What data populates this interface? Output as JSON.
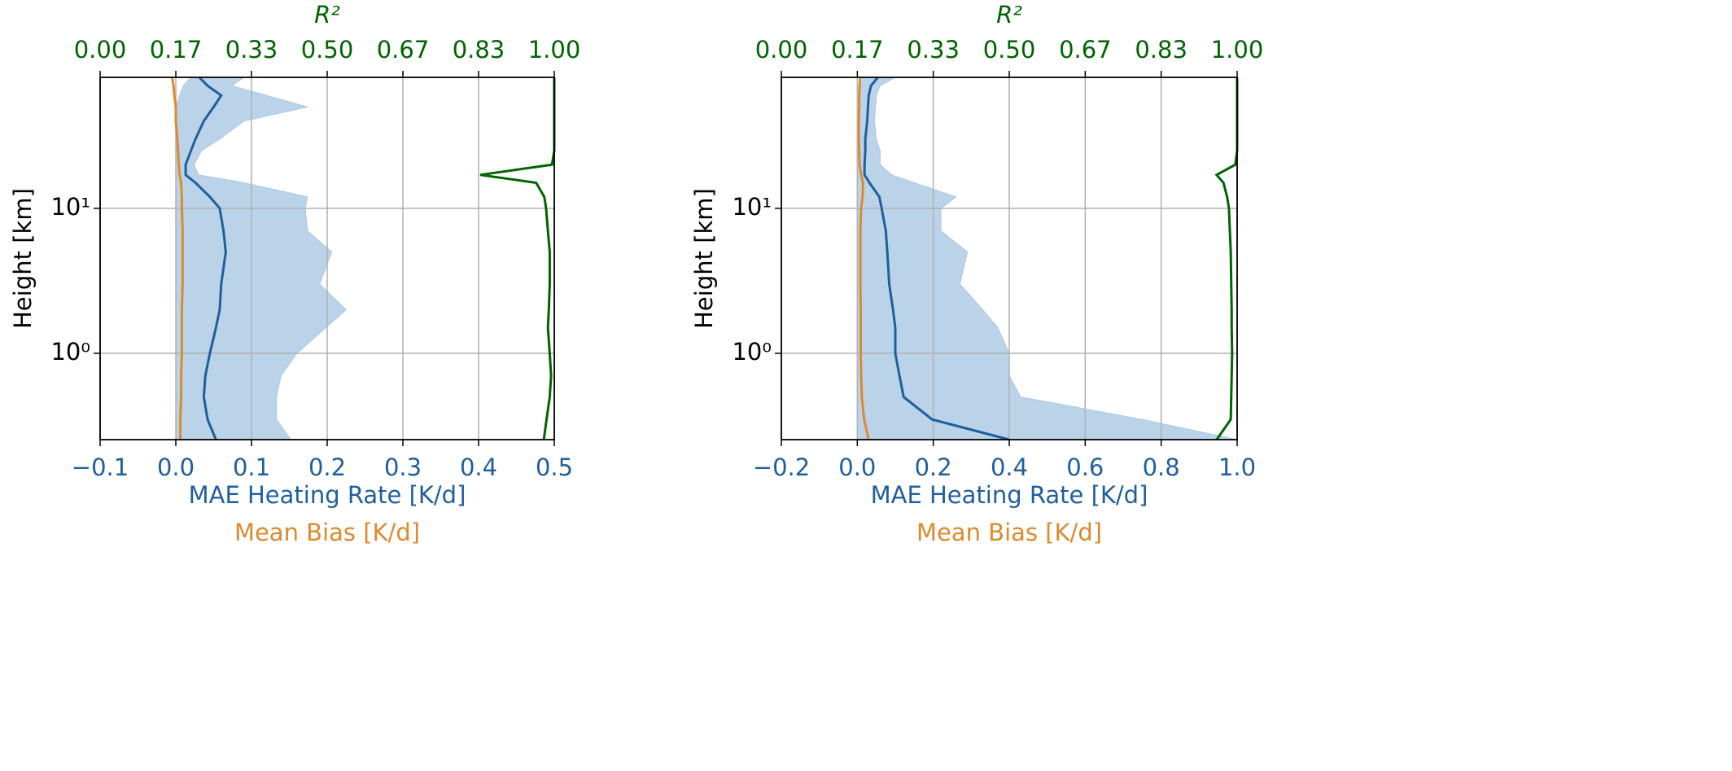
{
  "chart_data": [
    {
      "type": "line",
      "yscale": "log",
      "grid": true,
      "ylabel": "Height [km]",
      "xlabel": "MAE Heating Rate [K/d]",
      "bias_label": "Mean Bias [K/d]",
      "x2label": "R²",
      "y": [
        0.254,
        0.35,
        0.5,
        0.7,
        1,
        1.5,
        2,
        3,
        5,
        7,
        10,
        12,
        15,
        17,
        20,
        25,
        30,
        40,
        50,
        60,
        70,
        80
      ],
      "ylim": [
        0.254,
        80
      ],
      "yticks": [
        {
          "value": 1,
          "label": "10⁰"
        },
        {
          "value": 10,
          "label": "10¹"
        }
      ],
      "xlim": [
        -0.1,
        0.5
      ],
      "xticks": [
        {
          "value": -0.1,
          "label": "−0.1"
        },
        {
          "value": 0,
          "label": "0.0"
        },
        0.1,
        0.2,
        0.3,
        0.4,
        0.5
      ],
      "x2lim": [
        0,
        1
      ],
      "x2ticks": [
        {
          "value": 0,
          "label": "0.00"
        },
        {
          "value": 0.1667,
          "label": "0.17"
        },
        {
          "value": 0.3333,
          "label": "0.33"
        },
        {
          "value": 0.5,
          "label": "0.50"
        },
        {
          "value": 0.6667,
          "label": "0.67"
        },
        {
          "value": 0.8333,
          "label": "0.83"
        },
        {
          "value": 1,
          "label": "1.00"
        }
      ],
      "band": {
        "color": "#a9c8e4",
        "lower": [
          0,
          0,
          0,
          0,
          0,
          0,
          0,
          0,
          0,
          0,
          0,
          0,
          0,
          0,
          0,
          0,
          0,
          0,
          0,
          0.005,
          0.01,
          0.02
        ],
        "upper": [
          0.152,
          0.133,
          0.133,
          0.139,
          0.16,
          0.198,
          0.225,
          0.19,
          0.206,
          0.174,
          0.171,
          0.174,
          0.09,
          0.03,
          0.024,
          0.034,
          0.058,
          0.09,
          0.174,
          0.12,
          0.074,
          0.09
        ]
      },
      "series": [
        {
          "color": "#1f5f9c",
          "values": [
            0.053,
            0.042,
            0.037,
            0.039,
            0.045,
            0.053,
            0.058,
            0.06,
            0.066,
            0.063,
            0.058,
            0.045,
            0.026,
            0.013,
            0.013,
            0.02,
            0.026,
            0.037,
            0.05,
            0.06,
            0.042,
            0.031
          ]
        },
        {
          "color": "#dd8a2e",
          "values": [
            0.006,
            0.006,
            0.007,
            0.007,
            0.008,
            0.008,
            0.008,
            0.009,
            0.009,
            0.009,
            0.008,
            0.008,
            0.007,
            0.005,
            0.004,
            0.003,
            0.002,
            0.0,
            0.0,
            -0.002,
            -0.003,
            -0.005
          ]
        },
        {
          "color": "#006400",
          "axis": "x2",
          "values": [
            0.977,
            0.983,
            0.99,
            0.993,
            0.99,
            0.986,
            0.988,
            0.99,
            0.99,
            0.986,
            0.982,
            0.978,
            0.96,
            0.837,
            0.995,
            1.0,
            1.0,
            1.0,
            1.0,
            1.0,
            1.0,
            1.0
          ]
        }
      ]
    },
    {
      "type": "line",
      "yscale": "log",
      "grid": true,
      "ylabel": "Height [km]",
      "xlabel": "MAE Heating Rate [K/d]",
      "bias_label": "Mean Bias [K/d]",
      "x2label": "R²",
      "y": [
        0.254,
        0.35,
        0.5,
        0.7,
        1,
        1.5,
        2,
        3,
        5,
        7,
        10,
        12,
        15,
        17,
        20,
        25,
        30,
        40,
        50,
        60,
        70,
        80
      ],
      "ylim": [
        0.254,
        80
      ],
      "yticks": [
        {
          "value": 1,
          "label": "10⁰"
        },
        {
          "value": 10,
          "label": "10¹"
        }
      ],
      "xlim": [
        -0.2,
        1.0
      ],
      "xticks": [
        {
          "value": -0.2,
          "label": "−0.2"
        },
        {
          "value": 0,
          "label": "0.0"
        },
        0.2,
        0.4,
        0.6,
        0.8,
        {
          "value": 1,
          "label": "1.0"
        }
      ],
      "x2lim": [
        0,
        1
      ],
      "x2ticks": [
        {
          "value": 0,
          "label": "0.00"
        },
        {
          "value": 0.1667,
          "label": "0.17"
        },
        {
          "value": 0.3333,
          "label": "0.33"
        },
        {
          "value": 0.5,
          "label": "0.50"
        },
        {
          "value": 0.6667,
          "label": "0.67"
        },
        {
          "value": 0.8333,
          "label": "0.83"
        },
        {
          "value": 1,
          "label": "1.00"
        }
      ],
      "band": {
        "color": "#a9c8e4",
        "lower": [
          0,
          0,
          0,
          0,
          0,
          0,
          0,
          0,
          0,
          0,
          0,
          0,
          0,
          0,
          0,
          0,
          0,
          0,
          0.005,
          0.008,
          0.01,
          0.015
        ],
        "upper": [
          1.0,
          0.75,
          0.43,
          0.4,
          0.4,
          0.37,
          0.33,
          0.27,
          0.29,
          0.22,
          0.22,
          0.26,
          0.15,
          0.09,
          0.06,
          0.06,
          0.05,
          0.045,
          0.048,
          0.05,
          0.06,
          0.1
        ]
      },
      "series": [
        {
          "color": "#1f5f9c",
          "values": [
            0.4,
            0.197,
            0.122,
            0.111,
            0.1,
            0.1,
            0.094,
            0.084,
            0.079,
            0.075,
            0.064,
            0.058,
            0.032,
            0.019,
            0.019,
            0.021,
            0.021,
            0.026,
            0.028,
            0.03,
            0.036,
            0.054
          ]
        },
        {
          "color": "#dd8a2e",
          "values": [
            0.03,
            0.018,
            0.012,
            0.01,
            0.009,
            0.009,
            0.009,
            0.008,
            0.008,
            0.008,
            0.01,
            0.014,
            0.015,
            0.01,
            0.006,
            0.005,
            0.004,
            0.004,
            0.005,
            0.005,
            0.006,
            0.008
          ]
        },
        {
          "color": "#006400",
          "axis": "x2",
          "values": [
            0.955,
            0.986,
            0.987,
            0.988,
            0.989,
            0.988,
            0.988,
            0.987,
            0.986,
            0.984,
            0.982,
            0.978,
            0.97,
            0.955,
            0.996,
            1.0,
            1.0,
            1.0,
            1.0,
            1.0,
            1.0,
            1.0
          ]
        }
      ]
    }
  ]
}
